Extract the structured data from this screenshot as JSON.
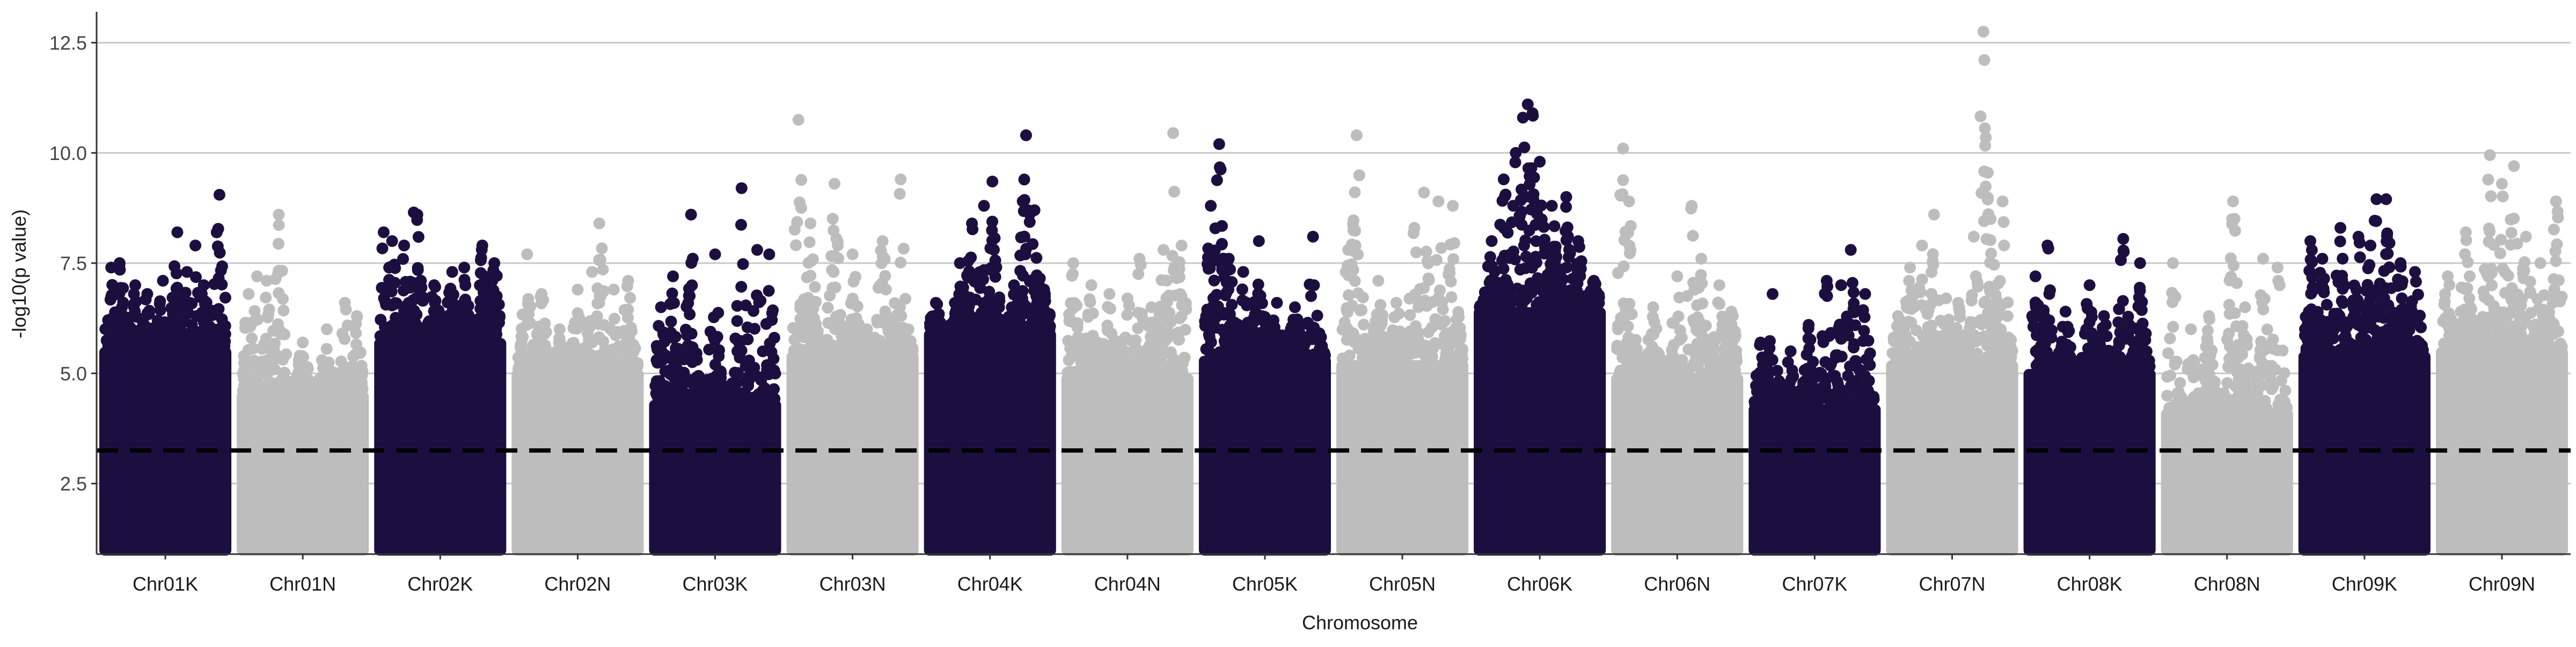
{
  "chart_data": {
    "type": "scatter",
    "title": "",
    "xlabel": "Chromosome",
    "ylabel": "-log10(p value)",
    "ylim": [
      0.9,
      13.2
    ],
    "yticks": [
      2.5,
      5.0,
      7.5,
      10.0,
      12.5
    ],
    "ytick_labels": [
      "2.5",
      "5.0",
      "7.5",
      "10.0",
      "12.5"
    ],
    "threshold": 3.25,
    "grid": true,
    "legend": "none",
    "colors": {
      "dark": "#1c0f40",
      "light": "#bdbdbd",
      "threshold": "#000000",
      "grid": "#c8c8c8"
    },
    "categories": [
      "Chr01K",
      "Chr01N",
      "Chr02K",
      "Chr02N",
      "Chr03K",
      "Chr03N",
      "Chr04K",
      "Chr04N",
      "Chr05K",
      "Chr05N",
      "Chr06K",
      "Chr06N",
      "Chr07K",
      "Chr07N",
      "Chr08K",
      "Chr08N",
      "Chr09K",
      "Chr09N"
    ],
    "series": [
      {
        "chromosome": "Chr01K",
        "color": "dark",
        "floor": 1.0,
        "band_top": 5.6,
        "peaks": [
          [
            0.05,
            7.4
          ],
          [
            0.12,
            7.5
          ],
          [
            0.25,
            7.0
          ],
          [
            0.35,
            6.8
          ],
          [
            0.48,
            7.1
          ],
          [
            0.6,
            8.2
          ],
          [
            0.68,
            7.3
          ],
          [
            0.75,
            7.9
          ],
          [
            0.82,
            7.0
          ],
          [
            0.95,
            9.05
          ]
        ]
      },
      {
        "chromosome": "Chr01N",
        "color": "light",
        "floor": 1.0,
        "band_top": 4.6,
        "peaks": [
          [
            0.05,
            6.8
          ],
          [
            0.12,
            7.2
          ],
          [
            0.2,
            7.1
          ],
          [
            0.3,
            8.6
          ],
          [
            0.5,
            5.7
          ],
          [
            0.7,
            6.0
          ],
          [
            0.85,
            6.6
          ],
          [
            0.95,
            6.3
          ]
        ]
      },
      {
        "chromosome": "Chr02K",
        "color": "dark",
        "floor": 1.0,
        "band_top": 5.8,
        "peaks": [
          [
            0.03,
            8.2
          ],
          [
            0.1,
            8.0
          ],
          [
            0.2,
            7.9
          ],
          [
            0.28,
            8.65
          ],
          [
            0.31,
            8.6
          ],
          [
            0.45,
            7.0
          ],
          [
            0.6,
            7.3
          ],
          [
            0.7,
            7.4
          ],
          [
            0.85,
            7.9
          ],
          [
            0.95,
            7.5
          ]
        ]
      },
      {
        "chromosome": "Chr02N",
        "color": "light",
        "floor": 1.0,
        "band_top": 5.1,
        "peaks": [
          [
            0.08,
            7.7
          ],
          [
            0.2,
            6.8
          ],
          [
            0.35,
            6.0
          ],
          [
            0.5,
            6.9
          ],
          [
            0.62,
            7.3
          ],
          [
            0.68,
            8.4
          ],
          [
            0.8,
            6.9
          ],
          [
            0.92,
            7.1
          ]
        ]
      },
      {
        "chromosome": "Chr03K",
        "color": "dark",
        "floor": 1.0,
        "band_top": 4.4,
        "peaks": [
          [
            0.05,
            6.5
          ],
          [
            0.15,
            7.2
          ],
          [
            0.3,
            8.6
          ],
          [
            0.5,
            7.7
          ],
          [
            0.62,
            4.7
          ],
          [
            0.72,
            9.2
          ],
          [
            0.85,
            7.8
          ],
          [
            0.95,
            7.7
          ]
        ]
      },
      {
        "chromosome": "Chr03N",
        "color": "light",
        "floor": 1.0,
        "band_top": 5.5,
        "peaks": [
          [
            0.05,
            10.75
          ],
          [
            0.15,
            8.4
          ],
          [
            0.35,
            9.3
          ],
          [
            0.5,
            7.7
          ],
          [
            0.62,
            6.0
          ],
          [
            0.75,
            8.0
          ],
          [
            0.9,
            9.4
          ]
        ]
      },
      {
        "chromosome": "Chr04K",
        "color": "dark",
        "floor": 1.0,
        "band_top": 6.0,
        "peaks": [
          [
            0.05,
            6.6
          ],
          [
            0.25,
            7.5
          ],
          [
            0.35,
            8.4
          ],
          [
            0.45,
            8.8
          ],
          [
            0.52,
            9.35
          ],
          [
            0.7,
            7.0
          ],
          [
            0.8,
            10.4
          ],
          [
            0.87,
            8.7
          ],
          [
            0.95,
            6.9
          ]
        ]
      },
      {
        "chromosome": "Chr04N",
        "color": "light",
        "floor": 1.0,
        "band_top": 5.0,
        "peaks": [
          [
            0.05,
            7.5
          ],
          [
            0.2,
            7.0
          ],
          [
            0.35,
            6.8
          ],
          [
            0.5,
            6.7
          ],
          [
            0.6,
            7.6
          ],
          [
            0.7,
            6.5
          ],
          [
            0.8,
            7.8
          ],
          [
            0.88,
            10.45
          ],
          [
            0.95,
            7.9
          ]
        ]
      },
      {
        "chromosome": "Chr05K",
        "color": "dark",
        "floor": 1.0,
        "band_top": 5.4,
        "peaks": [
          [
            0.05,
            8.8
          ],
          [
            0.12,
            10.2
          ],
          [
            0.2,
            7.6
          ],
          [
            0.32,
            7.3
          ],
          [
            0.45,
            8.0
          ],
          [
            0.6,
            6.6
          ],
          [
            0.75,
            6.5
          ],
          [
            0.9,
            8.1
          ]
        ]
      },
      {
        "chromosome": "Chr05N",
        "color": "light",
        "floor": 1.0,
        "band_top": 5.3,
        "peaks": [
          [
            0.05,
            7.8
          ],
          [
            0.12,
            10.4
          ],
          [
            0.3,
            7.1
          ],
          [
            0.45,
            6.6
          ],
          [
            0.6,
            8.3
          ],
          [
            0.68,
            9.1
          ],
          [
            0.8,
            8.9
          ],
          [
            0.92,
            8.8
          ]
        ]
      },
      {
        "chromosome": "Chr06K",
        "color": "dark",
        "floor": 1.0,
        "band_top": 6.5,
        "peaks": [
          [
            0.1,
            8.0
          ],
          [
            0.2,
            9.4
          ],
          [
            0.3,
            10.0
          ],
          [
            0.36,
            10.8
          ],
          [
            0.4,
            11.1
          ],
          [
            0.44,
            10.9
          ],
          [
            0.5,
            9.8
          ],
          [
            0.6,
            8.8
          ],
          [
            0.72,
            9.0
          ],
          [
            0.82,
            8.0
          ],
          [
            0.95,
            7.1
          ]
        ]
      },
      {
        "chromosome": "Chr06N",
        "color": "light",
        "floor": 1.0,
        "band_top": 5.0,
        "peaks": [
          [
            0.05,
            10.1
          ],
          [
            0.1,
            8.9
          ],
          [
            0.3,
            6.5
          ],
          [
            0.5,
            7.2
          ],
          [
            0.62,
            8.8
          ],
          [
            0.7,
            7.6
          ],
          [
            0.85,
            7.0
          ],
          [
            0.95,
            6.4
          ]
        ]
      },
      {
        "chromosome": "Chr07K",
        "color": "dark",
        "floor": 1.0,
        "band_top": 4.3,
        "peaks": [
          [
            0.05,
            5.7
          ],
          [
            0.15,
            6.8
          ],
          [
            0.3,
            5.5
          ],
          [
            0.45,
            6.1
          ],
          [
            0.6,
            7.1
          ],
          [
            0.72,
            7.0
          ],
          [
            0.8,
            7.8
          ],
          [
            0.92,
            6.8
          ]
        ]
      },
      {
        "chromosome": "Chr07N",
        "color": "light",
        "floor": 1.0,
        "band_top": 5.3,
        "peaks": [
          [
            0.05,
            6.3
          ],
          [
            0.15,
            7.4
          ],
          [
            0.25,
            7.9
          ],
          [
            0.35,
            8.6
          ],
          [
            0.45,
            6.7
          ],
          [
            0.55,
            6.6
          ],
          [
            0.68,
            8.1
          ],
          [
            0.76,
            12.75
          ],
          [
            0.78,
            10.35
          ],
          [
            0.82,
            8.5
          ],
          [
            0.92,
            8.9
          ]
        ]
      },
      {
        "chromosome": "Chr08K",
        "color": "dark",
        "floor": 1.0,
        "band_top": 5.1,
        "peaks": [
          [
            0.05,
            7.2
          ],
          [
            0.15,
            7.9
          ],
          [
            0.3,
            6.4
          ],
          [
            0.5,
            7.0
          ],
          [
            0.62,
            6.3
          ],
          [
            0.78,
            8.05
          ],
          [
            0.92,
            7.5
          ]
        ]
      },
      {
        "chromosome": "Chr08N",
        "color": "light",
        "floor": 1.0,
        "band_top": 4.2,
        "peaks": [
          [
            0.05,
            7.5
          ],
          [
            0.2,
            6.0
          ],
          [
            0.35,
            6.3
          ],
          [
            0.55,
            8.9
          ],
          [
            0.65,
            6.5
          ],
          [
            0.8,
            7.6
          ],
          [
            0.92,
            7.4
          ]
        ]
      },
      {
        "chromosome": "Chr09K",
        "color": "dark",
        "floor": 1.0,
        "band_top": 5.5,
        "peaks": [
          [
            0.05,
            8.0
          ],
          [
            0.15,
            7.6
          ],
          [
            0.3,
            8.3
          ],
          [
            0.45,
            8.1
          ],
          [
            0.55,
            7.9
          ],
          [
            0.6,
            8.95
          ],
          [
            0.68,
            8.95
          ],
          [
            0.8,
            7.5
          ],
          [
            0.92,
            7.3
          ]
        ]
      },
      {
        "chromosome": "Chr09N",
        "color": "light",
        "floor": 1.0,
        "band_top": 5.6,
        "peaks": [
          [
            0.05,
            7.2
          ],
          [
            0.2,
            8.2
          ],
          [
            0.4,
            9.95
          ],
          [
            0.5,
            9.3
          ],
          [
            0.6,
            9.7
          ],
          [
            0.7,
            8.1
          ],
          [
            0.82,
            7.5
          ],
          [
            0.95,
            8.9
          ]
        ]
      }
    ]
  }
}
